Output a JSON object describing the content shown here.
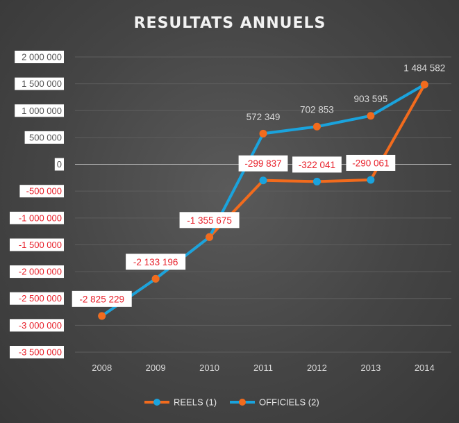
{
  "chart_data": {
    "type": "line",
    "title": "RESULTATS ANNUELS",
    "categories": [
      "2008",
      "2009",
      "2010",
      "2011",
      "2012",
      "2013",
      "2014"
    ],
    "ylim": [
      -3500000,
      2000000
    ],
    "y_ticks": [
      2000000,
      1500000,
      1000000,
      500000,
      0,
      -500000,
      -1000000,
      -1500000,
      -2000000,
      -2500000,
      -3000000,
      -3500000
    ],
    "y_tick_labels": [
      "2 000 000",
      "1 500 000",
      "1 000 000",
      "500 000",
      "0",
      "-500 000",
      "-1 000 000",
      "-1 500 000",
      "-2 000 000",
      "-2 500 000",
      "-3 000 000",
      "-3 500 000"
    ],
    "grid": true,
    "legend_position": "bottom",
    "series": [
      {
        "name": "REELS (1)",
        "color": "#f26b1d",
        "marker_color": "#1aa3dd",
        "values": [
          -2825229,
          -2133196,
          -1355675,
          -299837,
          -322041,
          -290061,
          1484582
        ]
      },
      {
        "name": "OFFICIELS (2)",
        "color": "#1aa3dd",
        "marker_color": "#f26b1d",
        "values": [
          -2825229,
          -2133196,
          -1355675,
          572349,
          702853,
          903595,
          1484582
        ]
      }
    ],
    "data_labels": [
      {
        "x": "2008",
        "value": -2825229,
        "text": "-2 825 229",
        "style": "boxed-red"
      },
      {
        "x": "2009",
        "value": -2133196,
        "text": "-2 133 196",
        "style": "boxed-red"
      },
      {
        "x": "2010",
        "value": -1355675,
        "text": "-1 355 675",
        "style": "boxed-red"
      },
      {
        "x": "2011",
        "value": -299837,
        "text": "-299 837",
        "style": "boxed-red"
      },
      {
        "x": "2012",
        "value": -322041,
        "text": "-322 041",
        "style": "boxed-red"
      },
      {
        "x": "2013",
        "value": -290061,
        "text": "-290 061",
        "style": "boxed-red"
      },
      {
        "x": "2011",
        "value": 572349,
        "text": "572 349",
        "style": "plain"
      },
      {
        "x": "2012",
        "value": 702853,
        "text": "702 853",
        "style": "plain"
      },
      {
        "x": "2013",
        "value": 903595,
        "text": "903 595",
        "style": "plain"
      },
      {
        "x": "2014",
        "value": 1484582,
        "text": "1 484 582",
        "style": "plain"
      }
    ],
    "colors": {
      "positive_tick": "#ffffff",
      "negative_tick": "#e8202a",
      "label_box": "#ffffff",
      "label_red": "#e8202a",
      "label_plain": "#d9d9d9",
      "grid": "#5e5e5e",
      "zero_line": "#bdbdbd"
    }
  }
}
